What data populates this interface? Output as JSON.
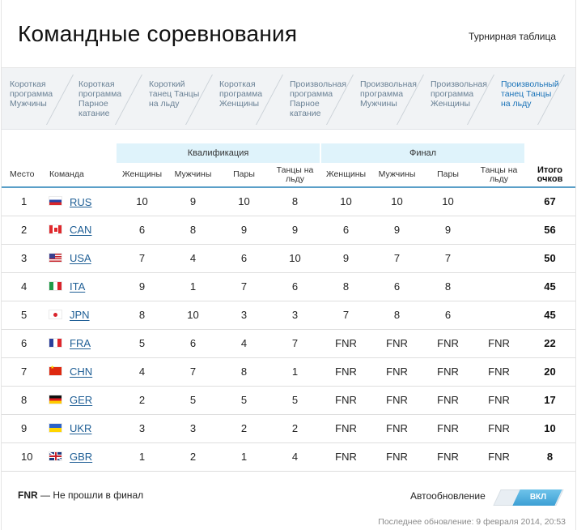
{
  "page": {
    "title": "Командные соревнования",
    "standings_link": "Турнирная таблица"
  },
  "tabs": [
    {
      "label": "Короткая программа Мужчины",
      "active": false
    },
    {
      "label": "Короткая программа Парное катание",
      "active": false
    },
    {
      "label": "Короткий танец Танцы на льду",
      "active": false
    },
    {
      "label": "Короткая программа Женщины",
      "active": false
    },
    {
      "label": "Произвольная программа Парное катание",
      "active": false
    },
    {
      "label": "Произвольная программа Мужчины",
      "active": false
    },
    {
      "label": "Произвольная программа Женщины",
      "active": false
    },
    {
      "label": "Произвольный танец Танцы на льду",
      "active": true
    }
  ],
  "table": {
    "groups": {
      "qualification": "Квалификация",
      "final": "Финал"
    },
    "headers": {
      "place": "Место",
      "team": "Команда",
      "q_women": "Женщины",
      "q_men": "Мужчины",
      "q_pairs": "Пары",
      "q_dance": "Танцы на льду",
      "f_women": "Женщины",
      "f_men": "Мужчины",
      "f_pairs": "Пары",
      "f_dance": "Танцы на льду",
      "total": "Итого очков"
    },
    "rows": [
      {
        "place": "1",
        "team": "RUS",
        "flag": "rus",
        "q": [
          "10",
          "9",
          "10",
          "8"
        ],
        "f": [
          "10",
          "10",
          "10",
          ""
        ],
        "total": "67"
      },
      {
        "place": "2",
        "team": "CAN",
        "flag": "can",
        "q": [
          "6",
          "8",
          "9",
          "9"
        ],
        "f": [
          "6",
          "9",
          "9",
          ""
        ],
        "total": "56"
      },
      {
        "place": "3",
        "team": "USA",
        "flag": "usa",
        "q": [
          "7",
          "4",
          "6",
          "10"
        ],
        "f": [
          "9",
          "7",
          "7",
          ""
        ],
        "total": "50"
      },
      {
        "place": "4",
        "team": "ITA",
        "flag": "ita",
        "q": [
          "9",
          "1",
          "7",
          "6"
        ],
        "f": [
          "8",
          "6",
          "8",
          ""
        ],
        "total": "45"
      },
      {
        "place": "5",
        "team": "JPN",
        "flag": "jpn",
        "q": [
          "8",
          "10",
          "3",
          "3"
        ],
        "f": [
          "7",
          "8",
          "6",
          ""
        ],
        "total": "45"
      },
      {
        "place": "6",
        "team": "FRA",
        "flag": "fra",
        "q": [
          "5",
          "6",
          "4",
          "7"
        ],
        "f": [
          "FNR",
          "FNR",
          "FNR",
          "FNR"
        ],
        "total": "22"
      },
      {
        "place": "7",
        "team": "CHN",
        "flag": "chn",
        "q": [
          "4",
          "7",
          "8",
          "1"
        ],
        "f": [
          "FNR",
          "FNR",
          "FNR",
          "FNR"
        ],
        "total": "20"
      },
      {
        "place": "8",
        "team": "GER",
        "flag": "ger",
        "q": [
          "2",
          "5",
          "5",
          "5"
        ],
        "f": [
          "FNR",
          "FNR",
          "FNR",
          "FNR"
        ],
        "total": "17"
      },
      {
        "place": "9",
        "team": "UKR",
        "flag": "ukr",
        "q": [
          "3",
          "3",
          "2",
          "2"
        ],
        "f": [
          "FNR",
          "FNR",
          "FNR",
          "FNR"
        ],
        "total": "10"
      },
      {
        "place": "10",
        "team": "GBR",
        "flag": "gbr",
        "q": [
          "1",
          "2",
          "1",
          "4"
        ],
        "f": [
          "FNR",
          "FNR",
          "FNR",
          "FNR"
        ],
        "total": "8"
      }
    ]
  },
  "footer": {
    "legend_abbr": "FNR",
    "legend_text": " — Не прошли в финал",
    "auto_update_label": "Автообновление",
    "toggle_label": "ВКЛ",
    "last_updated": "Последнее обновление: 9 февраля 2014, 20:53"
  },
  "colors": {
    "accent": "#1a73b8",
    "group_header_bg": "#dff3fb",
    "team_link": "#1e5e95",
    "toggle_on": "#3c9fd4"
  }
}
